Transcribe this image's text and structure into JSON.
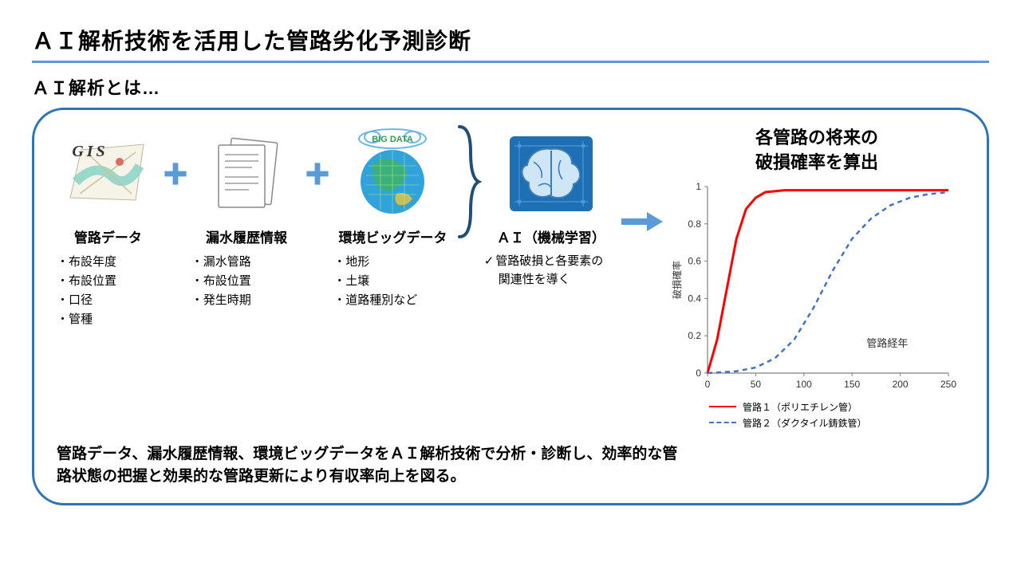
{
  "title": "ＡＩ解析技術を活用した管路劣化予測診断",
  "subtitle": "ＡＩ解析とは…",
  "columns": {
    "gis": {
      "badge": "GIS",
      "label": "管路データ",
      "items": [
        "布設年度",
        "布設位置",
        "口径",
        "管種"
      ]
    },
    "leak": {
      "label": "漏水履歴情報",
      "items": [
        "漏水管路",
        "布設位置",
        "発生時期"
      ]
    },
    "bigdata": {
      "badge": "BIG DATA",
      "label": "環境ビッグデータ",
      "items": [
        "地形",
        "土壌",
        "道路種別など"
      ]
    },
    "ai": {
      "label": "ＡＩ（機械学習）",
      "note1": "管路破損と各要素の",
      "note2": "関連性を導く"
    }
  },
  "chart": {
    "title_l1": "各管路の将来の",
    "title_l2": "破損確率を算出",
    "type": "line",
    "xlim": [
      0,
      250
    ],
    "xtick_step": 50,
    "ylim": [
      0,
      1
    ],
    "ytick_step": 0.2,
    "ylabel": "破損確率",
    "xlabel_inside": "管路経年",
    "axis_color": "#7f7f7f",
    "grid": false,
    "background": "#ffffff",
    "label_fontsize": 12,
    "series": [
      {
        "name": "管路１（ポリエチレン管）",
        "color": "#ff0000",
        "width": 3,
        "dash": "none",
        "points": [
          [
            0,
            0
          ],
          [
            10,
            0.18
          ],
          [
            20,
            0.45
          ],
          [
            30,
            0.72
          ],
          [
            40,
            0.88
          ],
          [
            50,
            0.94
          ],
          [
            60,
            0.97
          ],
          [
            80,
            0.98
          ],
          [
            120,
            0.98
          ],
          [
            180,
            0.98
          ],
          [
            250,
            0.98
          ]
        ]
      },
      {
        "name": "管路２（ダクタイル鋳鉄管）",
        "color": "#4472c4",
        "width": 2.5,
        "dash": "6 5",
        "points": [
          [
            0,
            0
          ],
          [
            30,
            0.01
          ],
          [
            50,
            0.03
          ],
          [
            70,
            0.08
          ],
          [
            90,
            0.18
          ],
          [
            110,
            0.35
          ],
          [
            130,
            0.55
          ],
          [
            150,
            0.72
          ],
          [
            170,
            0.83
          ],
          [
            190,
            0.9
          ],
          [
            210,
            0.94
          ],
          [
            230,
            0.96
          ],
          [
            250,
            0.97
          ]
        ]
      }
    ]
  },
  "summary": "管路データ、漏水履歴情報、環境ビッグデータをＡＩ解析技術で分析・診断し、効率的な管路状態の把握と効果的な管路更新により有収率向上を図る。",
  "colors": {
    "accent": "#5b9bd5",
    "box_border": "#2e75b6",
    "plus": "#5b9bd5",
    "arrow": "#5b9bd5",
    "brace": "#1f4e79",
    "ai_block": "#1f6fb5"
  }
}
